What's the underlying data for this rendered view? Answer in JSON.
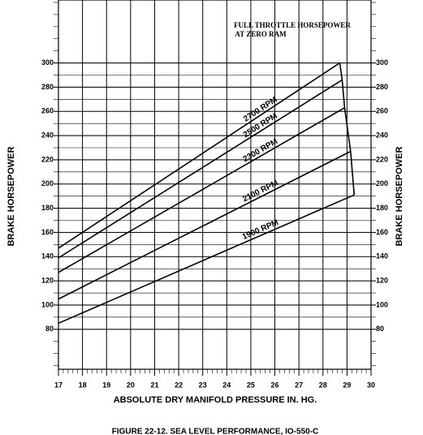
{
  "chart_data": {
    "type": "line",
    "caption": "FIGURE 22-12. SEA LEVEL PERFORMANCE, IO-550-C",
    "annotation": [
      "FULL THROTTLE HORSEPOWER",
      "AT ZERO RAM"
    ],
    "x_label": "ABSOLUTE DRY MANIFOLD PRESSURE IN. HG.",
    "y_label": "BRAKE HORSEPOWER",
    "xlim": [
      17,
      30
    ],
    "xticks": [
      17,
      18,
      19,
      20,
      21,
      22,
      23,
      24,
      25,
      26,
      27,
      28,
      29,
      30
    ],
    "ylim": [
      47,
      352
    ],
    "yticks": [
      80,
      100,
      120,
      140,
      160,
      180,
      200,
      220,
      240,
      260,
      280,
      300
    ],
    "grid": true,
    "series": [
      {
        "name": "2700 RPM",
        "color": "#000000",
        "x": [
          17,
          28.7
        ],
        "values": [
          147,
          300
        ]
      },
      {
        "name": "2500 RPM",
        "color": "#000000",
        "x": [
          17,
          28.8
        ],
        "values": [
          139,
          286
        ]
      },
      {
        "name": "2300 RPM",
        "color": "#000000",
        "x": [
          17,
          28.9
        ],
        "values": [
          127,
          263
        ]
      },
      {
        "name": "2100 RPM",
        "color": "#000000",
        "x": [
          17,
          29.15
        ],
        "values": [
          105,
          227
        ]
      },
      {
        "name": "1900 RPM",
        "color": "#000000",
        "x": [
          17,
          29.3
        ],
        "values": [
          85,
          191
        ]
      }
    ],
    "full_throttle": {
      "color": "#000000",
      "x": [
        28.7,
        28.8,
        28.9,
        29.15,
        29.3
      ],
      "values": [
        300,
        286,
        263,
        227,
        191
      ]
    }
  }
}
